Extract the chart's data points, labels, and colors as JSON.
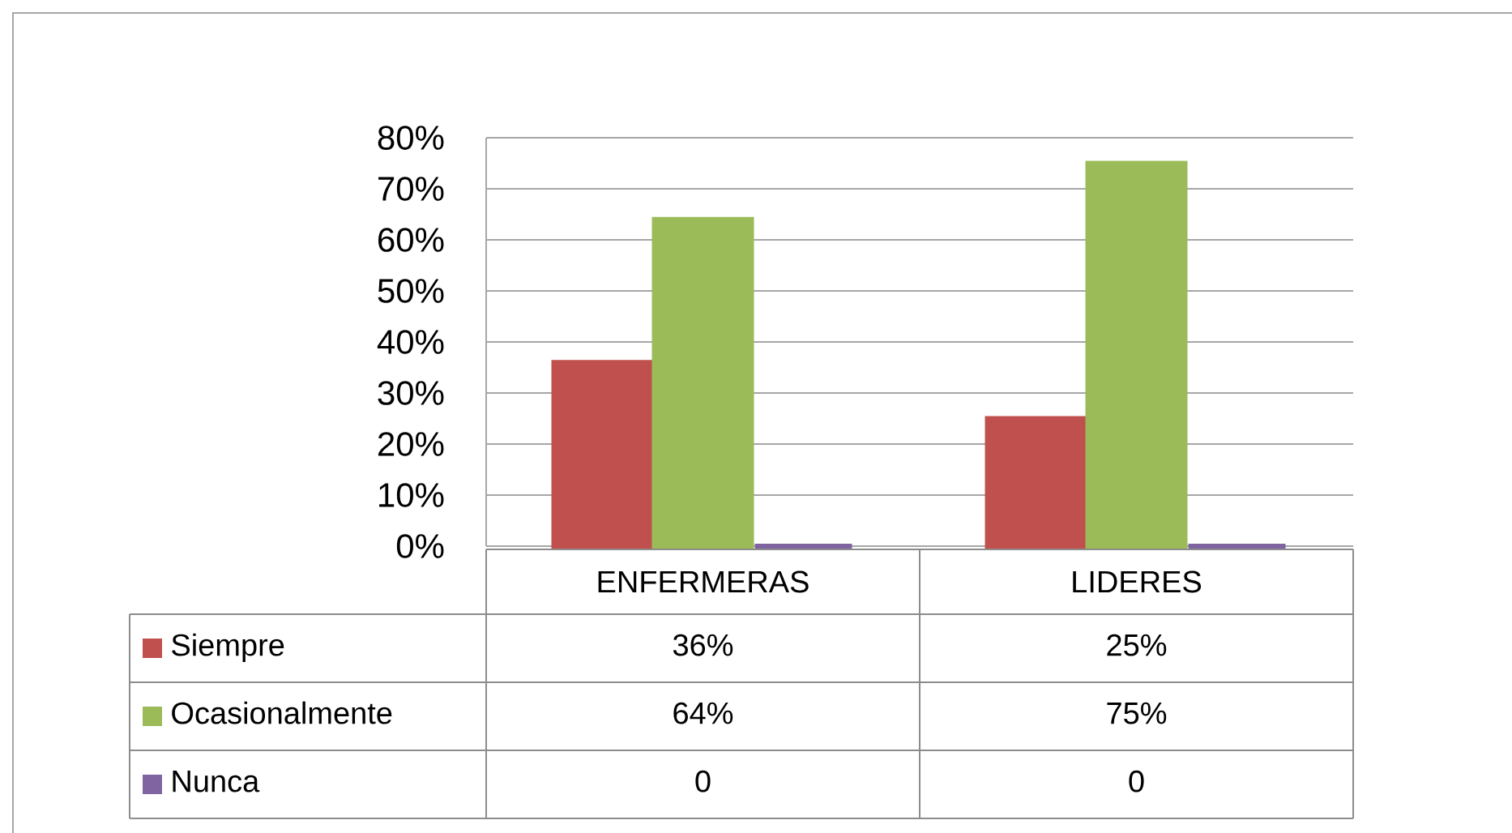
{
  "chart_data": {
    "type": "bar",
    "categories": [
      "ENFERMERAS",
      "LIDERES"
    ],
    "series": [
      {
        "name": "Siempre",
        "color": "#c0504d",
        "values": [
          36,
          25
        ],
        "value_labels": [
          "36%",
          "25%"
        ]
      },
      {
        "name": "Ocasionalmente",
        "color": "#9bbb59",
        "values": [
          64,
          75
        ],
        "value_labels": [
          "64%",
          "75%"
        ]
      },
      {
        "name": "Nunca",
        "color": "#8064a2",
        "values": [
          0,
          0
        ],
        "value_labels": [
          "0",
          "0"
        ]
      }
    ],
    "ylim": [
      0,
      80
    ],
    "yticks": [
      {
        "value": 0,
        "label": "0%"
      },
      {
        "value": 10,
        "label": "10%"
      },
      {
        "value": 20,
        "label": "20%"
      },
      {
        "value": 30,
        "label": "30%"
      },
      {
        "value": 40,
        "label": "40%"
      },
      {
        "value": 50,
        "label": "50%"
      },
      {
        "value": 60,
        "label": "60%"
      },
      {
        "value": 70,
        "label": "70%"
      },
      {
        "value": 80,
        "label": "80%"
      }
    ],
    "grid": "y",
    "legend": "bottom"
  }
}
